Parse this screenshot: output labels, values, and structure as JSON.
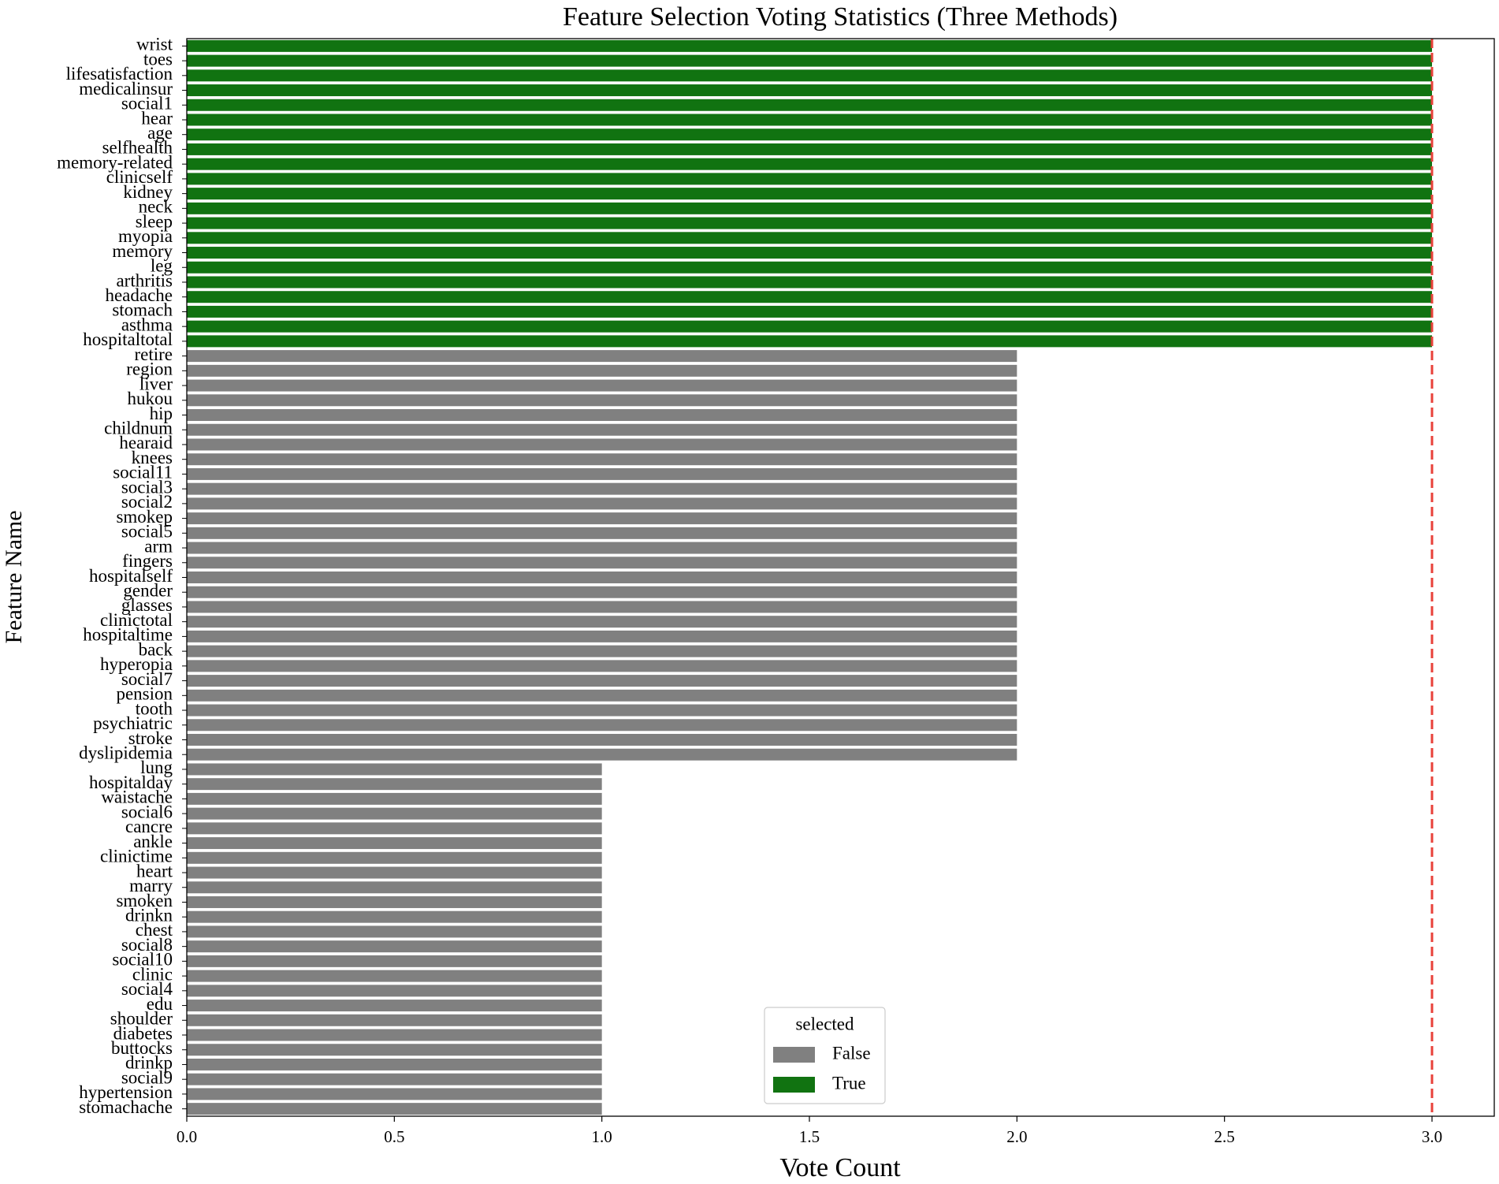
{
  "chart_data": {
    "type": "barh",
    "title": "Feature Selection Voting Statistics (Three Methods)",
    "x_label": "Vote Count",
    "y_label": "Feature Name",
    "categories": [
      "wrist",
      "toes",
      "lifesatisfaction",
      "medicalinsur",
      "social1",
      "hear",
      "age",
      "selfhealth",
      "memory-related",
      "clinicself",
      "kidney",
      "neck",
      "sleep",
      "myopia",
      "memory",
      "leg",
      "arthritis",
      "headache",
      "stomach",
      "asthma",
      "hospitaltotal",
      "retire",
      "region",
      "liver",
      "hukou",
      "hip",
      "childnum",
      "hearaid",
      "knees",
      "social11",
      "social3",
      "social2",
      "smokep",
      "social5",
      "arm",
      "fingers",
      "hospitalself",
      "gender",
      "glasses",
      "clinictotal",
      "hospitaltime",
      "back",
      "hyperopia",
      "social7",
      "pension",
      "tooth",
      "psychiatric",
      "stroke",
      "dyslipidemia",
      "lung",
      "hospitalday",
      "waistache",
      "social6",
      "cancre",
      "ankle",
      "clinictime",
      "heart",
      "marry",
      "smoken",
      "drinkn",
      "chest",
      "social8",
      "social10",
      "clinic",
      "social4",
      "edu",
      "shoulder",
      "diabetes",
      "buttocks",
      "drinkp",
      "social9",
      "hypertension",
      "stomachache"
    ],
    "legend_title": "selected",
    "series": [
      {
        "name": "False",
        "color": "#808080",
        "values": [
          null,
          null,
          null,
          null,
          null,
          null,
          null,
          null,
          null,
          null,
          null,
          null,
          null,
          null,
          null,
          null,
          null,
          null,
          null,
          null,
          null,
          2,
          2,
          2,
          2,
          2,
          2,
          2,
          2,
          2,
          2,
          2,
          2,
          2,
          2,
          2,
          2,
          2,
          2,
          2,
          2,
          2,
          2,
          2,
          2,
          2,
          2,
          2,
          2,
          1,
          1,
          1,
          1,
          1,
          1,
          1,
          1,
          1,
          1,
          1,
          1,
          1,
          1,
          1,
          1,
          1,
          1,
          1,
          1,
          1,
          1,
          1,
          1
        ]
      },
      {
        "name": "True",
        "color": "#117311",
        "values": [
          3,
          3,
          3,
          3,
          3,
          3,
          3,
          3,
          3,
          3,
          3,
          3,
          3,
          3,
          3,
          3,
          3,
          3,
          3,
          3,
          3,
          null,
          null,
          null,
          null,
          null,
          null,
          null,
          null,
          null,
          null,
          null,
          null,
          null,
          null,
          null,
          null,
          null,
          null,
          null,
          null,
          null,
          null,
          null,
          null,
          null,
          null,
          null,
          null,
          null,
          null,
          null,
          null,
          null,
          null,
          null,
          null,
          null,
          null,
          null,
          null,
          null,
          null,
          null,
          null,
          null,
          null,
          null,
          null,
          null,
          null,
          null,
          null
        ]
      }
    ],
    "reference_line": {
      "value": 3,
      "color": "#e8413a"
    },
    "xlim": [
      0,
      3.15
    ],
    "xticks": [
      {
        "value": 0,
        "label": "0.0"
      },
      0.5,
      {
        "value": 1,
        "label": "1.0"
      },
      1.5,
      {
        "value": 2,
        "label": "2.0"
      },
      2.5,
      {
        "value": 3,
        "label": "3.0"
      }
    ],
    "legend_position": "lower center"
  }
}
